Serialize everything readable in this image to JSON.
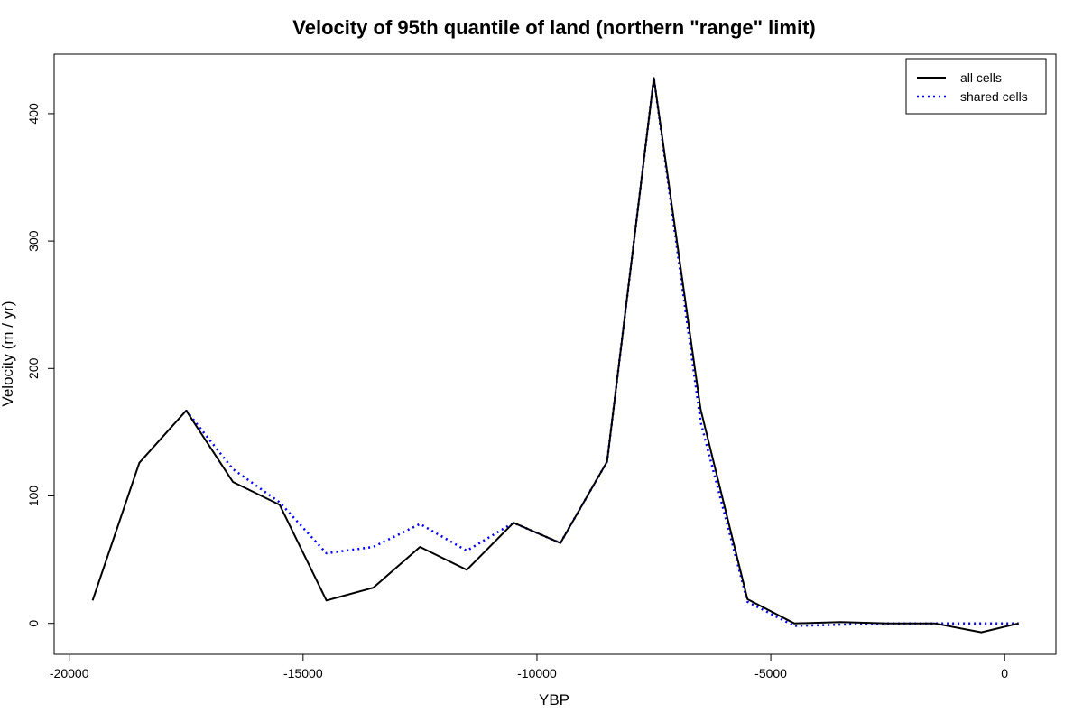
{
  "chart_data": {
    "type": "line",
    "title": "Velocity of 95th quantile of land (northern \"range\" limit)",
    "xlabel": "YBP",
    "ylabel": "Velocity (m / yr)",
    "xlim": [
      -20000,
      0
    ],
    "ylim": [
      0,
      400
    ],
    "x_ticks": [
      -20000,
      -15000,
      -10000,
      -5000,
      0
    ],
    "y_ticks": [
      0,
      100,
      200,
      300,
      400
    ],
    "grid": false,
    "legend_position": "top-right",
    "series": [
      {
        "name": "all cells",
        "color": "#000000",
        "style": "solid",
        "x": [
          -19500,
          -18500,
          -17500,
          -16500,
          -15500,
          -14500,
          -13500,
          -12500,
          -11500,
          -10500,
          -9500,
          -8500,
          -7500,
          -6500,
          -5500,
          -4500,
          -3500,
          -2500,
          -1500,
          -500,
          300
        ],
        "y": [
          18,
          126,
          167,
          111,
          93,
          18,
          28,
          60,
          42,
          79,
          63,
          127,
          428,
          168,
          19,
          0,
          1,
          0,
          0,
          -7,
          0
        ]
      },
      {
        "name": "shared cells",
        "color": "#0000ff",
        "style": "dotted",
        "x": [
          -17500,
          -16500,
          -15500,
          -14500,
          -13500,
          -12500,
          -11500,
          -10500,
          -9500,
          -8500,
          -7500,
          -6500,
          -5500,
          -4500,
          -3500,
          -2500,
          -1500,
          -500,
          300
        ],
        "y": [
          167,
          121,
          95,
          55,
          60,
          78,
          57,
          79,
          63,
          127,
          428,
          158,
          17,
          -2,
          -1,
          0,
          0,
          0,
          0
        ]
      }
    ]
  }
}
